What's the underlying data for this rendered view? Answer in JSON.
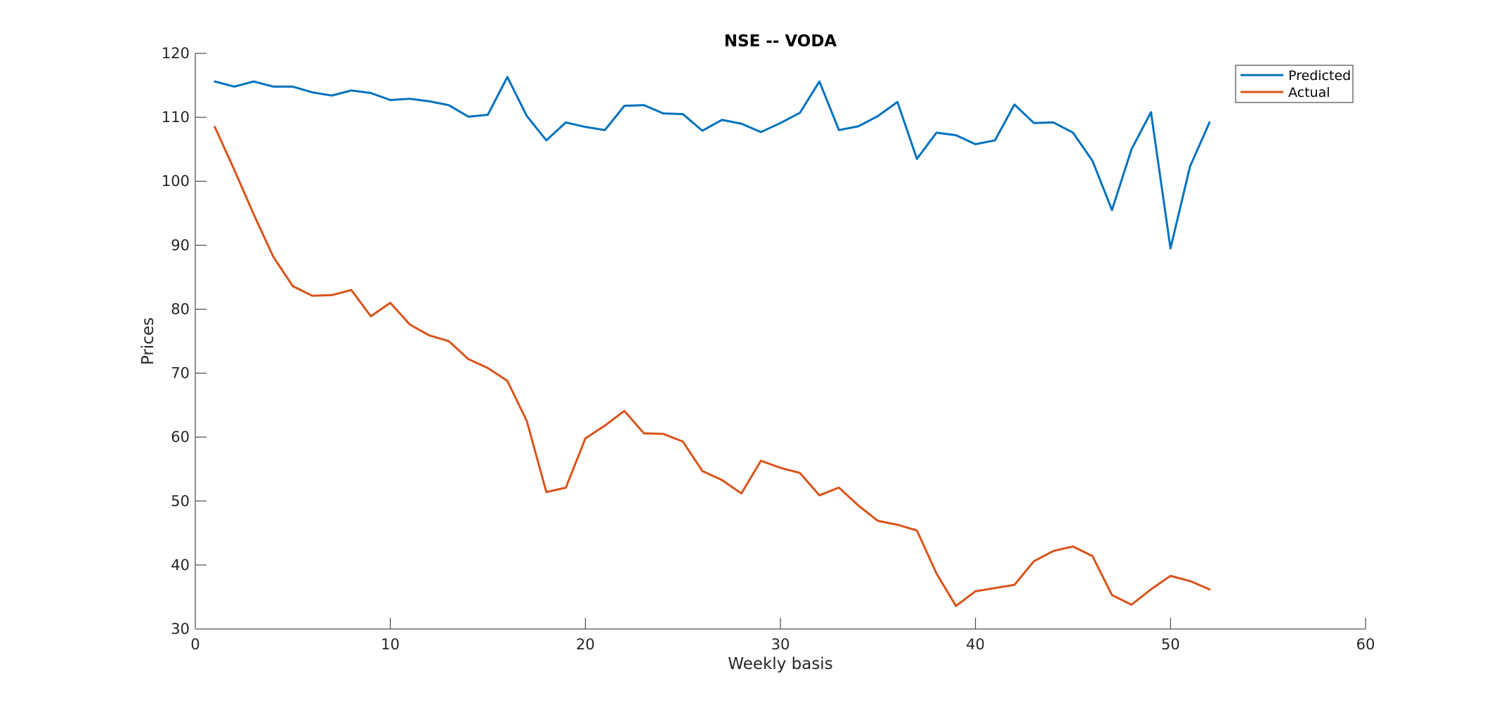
{
  "chart_data": {
    "type": "line",
    "title": "NSE -- VODA",
    "xlabel": "Weekly basis",
    "ylabel": "Prices",
    "xlim": [
      0,
      60
    ],
    "ylim": [
      30,
      120
    ],
    "xticks": [
      0,
      10,
      20,
      30,
      40,
      50,
      60
    ],
    "yticks": [
      30,
      40,
      50,
      60,
      70,
      80,
      90,
      100,
      110,
      120
    ],
    "xtick_labels": [
      "0",
      "10",
      "20",
      "30",
      "40",
      "50",
      "60"
    ],
    "ytick_labels": [
      "30",
      "40",
      "50",
      "60",
      "70",
      "80",
      "90",
      "100",
      "110",
      "120"
    ],
    "grid": false,
    "legend_position": "top-right",
    "x": [
      1,
      2,
      3,
      4,
      5,
      6,
      7,
      8,
      9,
      10,
      11,
      12,
      13,
      14,
      15,
      16,
      17,
      18,
      19,
      20,
      21,
      22,
      23,
      24,
      25,
      26,
      27,
      28,
      29,
      30,
      31,
      32,
      33,
      34,
      35,
      36,
      37,
      38,
      39,
      40,
      41,
      42,
      43,
      44,
      45,
      46,
      47,
      48,
      49,
      50,
      51,
      52
    ],
    "series": [
      {
        "name": "Predicted",
        "color": "#0072BD",
        "values": [
          115.6,
          114.8,
          115.6,
          114.8,
          114.8,
          113.9,
          113.4,
          114.2,
          113.8,
          112.7,
          112.9,
          112.5,
          111.9,
          110.1,
          110.4,
          116.3,
          110.2,
          106.4,
          109.2,
          108.5,
          108.0,
          111.8,
          111.9,
          110.6,
          110.5,
          107.9,
          109.6,
          109.0,
          107.7,
          109.1,
          110.7,
          115.6,
          108.0,
          108.6,
          110.2,
          112.4,
          103.5,
          107.6,
          107.2,
          105.8,
          106.4,
          112.0,
          109.1,
          109.2,
          107.6,
          103.2,
          95.5,
          105.0,
          110.8,
          89.5,
          102.3,
          109.2
        ]
      },
      {
        "name": "Actual",
        "color": "#D95319",
        "values": [
          108.5,
          101.8,
          94.8,
          88.2,
          83.6,
          82.1,
          82.2,
          83.0,
          78.9,
          81.0,
          77.6,
          75.9,
          75.0,
          72.2,
          70.8,
          68.8,
          62.5,
          51.4,
          52.1,
          59.8,
          61.8,
          64.1,
          60.6,
          60.5,
          59.3,
          54.7,
          53.3,
          51.2,
          56.3,
          55.2,
          54.4,
          50.9,
          52.1,
          49.3,
          46.9,
          46.3,
          45.4,
          38.7,
          33.6,
          35.9,
          36.4,
          36.9,
          40.6,
          42.2,
          42.9,
          41.4,
          35.3,
          33.8,
          36.2,
          38.3,
          37.5,
          36.2
        ]
      }
    ]
  }
}
